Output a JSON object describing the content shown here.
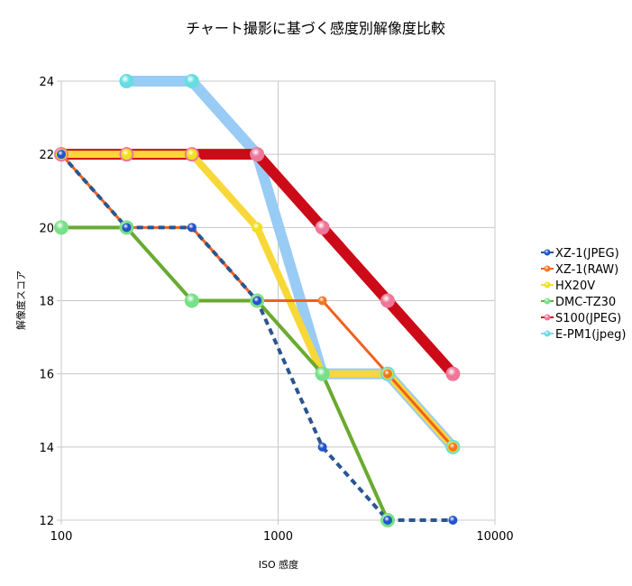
{
  "chart_data": {
    "type": "line",
    "title": "チャート撮影に基づく感度別解像度比較",
    "xlabel": "ISO 感度",
    "ylabel": "解像度スコア",
    "xscale": "log",
    "xlim": [
      100,
      10000
    ],
    "ylim": [
      12,
      24
    ],
    "xticks": [
      100,
      1000,
      10000
    ],
    "yticks": [
      12,
      14,
      16,
      18,
      20,
      22,
      24
    ],
    "grid": true,
    "legend": "right",
    "series": [
      {
        "name": "E-PM1(jpeg)",
        "color": "#99ccf5",
        "marker": "#66dde0",
        "x": [
          200,
          400,
          800,
          1600,
          3200,
          6400
        ],
        "y": [
          24,
          24,
          22,
          16,
          16,
          14
        ]
      },
      {
        "name": "S100(JPEG)",
        "color": "#cc0a18",
        "marker": "#ee7799",
        "x": [
          100,
          200,
          400,
          800,
          1600,
          3200,
          6400
        ],
        "y": [
          22,
          22,
          22,
          22,
          20,
          18,
          16
        ]
      },
      {
        "name": "HX20V",
        "color": "#f8d838",
        "marker": "#f0e020",
        "x": [
          100,
          200,
          400,
          800,
          1600,
          3200,
          6400
        ],
        "y": [
          22,
          22,
          22,
          20,
          16,
          16,
          14
        ]
      },
      {
        "name": "DMC-TZ30",
        "color": "#6aaa30",
        "marker": "#77e088",
        "x": [
          100,
          200,
          400,
          800,
          1600,
          3200
        ],
        "y": [
          20,
          20,
          18,
          18,
          16,
          12
        ]
      },
      {
        "name": "XZ-1(RAW)",
        "color": "#f06020",
        "marker": "#f07820",
        "x": [
          100,
          200,
          400,
          800,
          1600,
          3200,
          6400
        ],
        "y": [
          22,
          20,
          20,
          18,
          18,
          16,
          14
        ]
      },
      {
        "name": "XZ-1(JPEG)",
        "color": "#2a5590",
        "marker": "#2255cc",
        "dashed": true,
        "x": [
          100,
          200,
          400,
          800,
          1600,
          3200,
          6400
        ],
        "y": [
          22,
          20,
          20,
          18,
          14,
          12,
          12
        ]
      }
    ],
    "legend_order": [
      "XZ-1(JPEG)",
      "XZ-1(RAW)",
      "HX20V",
      "DMC-TZ30",
      "S100(JPEG)",
      "E-PM1(jpeg)"
    ]
  }
}
